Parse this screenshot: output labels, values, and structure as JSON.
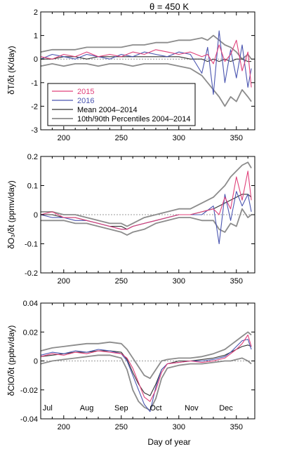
{
  "figure": {
    "title": "θ = 450 K",
    "xlabel": "Day of year",
    "month_labels": [
      "Jul",
      "Aug",
      "Sep",
      "Oct",
      "Nov",
      "Dec"
    ],
    "month_days": [
      186,
      220,
      250,
      280,
      311,
      341
    ]
  },
  "legend": {
    "entries": [
      {
        "label": "2015",
        "color": "#e0407a"
      },
      {
        "label": "2016",
        "color": "#4a55b0"
      },
      {
        "label": "Mean 2004–2014",
        "color": "#333333"
      },
      {
        "label": "10th/90th Percentiles 2004–2014",
        "color": "#8c8c8c"
      }
    ]
  },
  "colors": {
    "y2015": "#e0407a",
    "y2016": "#4a55b0",
    "mean": "#333333",
    "pct": "#8c8c8c",
    "zero": "#999999"
  },
  "chart_data": [
    {
      "type": "line",
      "ylabel": "δT/δt (K/day)",
      "xlim": [
        180,
        366
      ],
      "ylim": [
        -3,
        2
      ],
      "xticks": [
        200,
        250,
        300,
        350
      ],
      "yticks": [
        -3,
        -2,
        -1,
        0,
        1,
        2
      ],
      "x": [
        180,
        190,
        200,
        210,
        220,
        230,
        240,
        250,
        260,
        270,
        280,
        290,
        300,
        310,
        320,
        325,
        330,
        335,
        340,
        345,
        350,
        355,
        360,
        363
      ],
      "series": [
        {
          "name": "2015",
          "key": "y2015",
          "values": [
            0.1,
            0.0,
            0.2,
            0.1,
            0.3,
            0.1,
            0.2,
            0.1,
            0.3,
            0.2,
            0.4,
            0.3,
            0.2,
            0.3,
            0.1,
            0.2,
            -0.2,
            0.6,
            -0.1,
            0.2,
            0.8,
            -0.5,
            0.3,
            -1.2
          ]
        },
        {
          "name": "2016",
          "key": "y2016",
          "values": [
            0.0,
            0.2,
            0.1,
            0.0,
            0.2,
            0.1,
            0.0,
            0.2,
            0.1,
            0.3,
            0.2,
            0.1,
            0.3,
            0.2,
            -0.6,
            0.5,
            -1.5,
            1.2,
            -1.0,
            0.4,
            -0.8,
            0.6,
            -1.2,
            -0.4
          ]
        },
        {
          "name": "Mean 2004–2014",
          "key": "mean",
          "values": [
            0.0,
            0.0,
            0.1,
            0.1,
            0.0,
            0.1,
            0.1,
            0.1,
            0.1,
            0.1,
            0.1,
            0.1,
            0.1,
            0.0,
            0.0,
            -0.1,
            0.0,
            -0.1,
            0.0,
            -0.1,
            0.0,
            0.0,
            -0.1,
            -0.1
          ]
        },
        {
          "name": "10th Percentile 2004–2014",
          "key": "pct",
          "values": [
            -0.3,
            -0.2,
            -0.3,
            -0.2,
            -0.2,
            -0.3,
            -0.2,
            -0.2,
            -0.3,
            -0.2,
            -0.2,
            -0.2,
            -0.3,
            -0.4,
            -0.7,
            -1.0,
            -1.3,
            -1.6,
            -2.0,
            -1.6,
            -1.8,
            -1.3,
            -1.6,
            -1.8
          ]
        },
        {
          "name": "90th Percentile 2004–2014",
          "key": "pct",
          "values": [
            0.3,
            0.4,
            0.4,
            0.4,
            0.5,
            0.5,
            0.5,
            0.5,
            0.6,
            0.6,
            0.7,
            0.7,
            0.8,
            0.8,
            0.9,
            0.8,
            1.0,
            0.8,
            0.6,
            0.5,
            0.3,
            0.0,
            0.2,
            0.0
          ]
        }
      ]
    },
    {
      "type": "line",
      "ylabel": "δO₃/δt (ppmv/day)",
      "xlim": [
        180,
        366
      ],
      "ylim": [
        -0.2,
        0.2
      ],
      "xticks": [
        200,
        250,
        300,
        350
      ],
      "yticks": [
        -0.2,
        -0.1,
        0,
        0.1,
        0.2
      ],
      "x": [
        180,
        190,
        200,
        210,
        220,
        230,
        240,
        250,
        255,
        260,
        270,
        280,
        290,
        300,
        310,
        320,
        330,
        335,
        340,
        345,
        350,
        355,
        360,
        363
      ],
      "series": [
        {
          "name": "2015",
          "key": "y2015",
          "values": [
            0.0,
            0.01,
            -0.01,
            -0.01,
            -0.02,
            -0.03,
            -0.04,
            -0.05,
            -0.05,
            -0.04,
            -0.03,
            -0.02,
            -0.01,
            0.0,
            0.0,
            0.01,
            0.02,
            0.0,
            0.06,
            0.02,
            0.13,
            0.05,
            0.15,
            0.05
          ]
        },
        {
          "name": "2016",
          "key": "y2016",
          "values": [
            0.0,
            -0.01,
            -0.01,
            -0.02,
            -0.02,
            -0.03,
            -0.04,
            -0.05,
            -0.05,
            -0.04,
            -0.03,
            -0.02,
            -0.01,
            0.0,
            0.0,
            0.0,
            0.03,
            -0.1,
            0.07,
            -0.02,
            0.08,
            0.03,
            0.07,
            0.01
          ]
        },
        {
          "name": "Mean 2004–2014",
          "key": "mean",
          "values": [
            0.0,
            0.0,
            -0.01,
            -0.01,
            -0.02,
            -0.03,
            -0.04,
            -0.04,
            -0.05,
            -0.04,
            -0.03,
            -0.02,
            -0.01,
            0.0,
            0.0,
            0.01,
            0.02,
            0.03,
            0.04,
            0.05,
            0.06,
            0.07,
            0.07,
            0.06
          ]
        },
        {
          "name": "10th Percentile 2004–2014",
          "key": "pct",
          "values": [
            -0.02,
            -0.02,
            -0.02,
            -0.03,
            -0.03,
            -0.04,
            -0.05,
            -0.06,
            -0.07,
            -0.06,
            -0.05,
            -0.03,
            -0.02,
            -0.01,
            -0.01,
            -0.02,
            -0.02,
            -0.05,
            -0.06,
            -0.03,
            -0.04,
            0.02,
            -0.01,
            0.0
          ]
        },
        {
          "name": "90th Percentile 2004–2014",
          "key": "pct",
          "values": [
            0.01,
            0.01,
            0.0,
            0.0,
            -0.01,
            -0.02,
            -0.03,
            -0.03,
            -0.04,
            -0.03,
            -0.01,
            0.0,
            0.01,
            0.02,
            0.02,
            0.04,
            0.06,
            0.08,
            0.1,
            0.13,
            0.15,
            0.17,
            0.18,
            0.16
          ]
        }
      ]
    },
    {
      "type": "line",
      "ylabel": "δClO/δt (ppbv/day)",
      "xlim": [
        180,
        366
      ],
      "ylim": [
        -0.04,
        0.04
      ],
      "xticks": [
        200,
        250,
        300,
        350
      ],
      "yticks": [
        -0.04,
        -0.02,
        0,
        0.02,
        0.04
      ],
      "x": [
        180,
        190,
        200,
        210,
        220,
        230,
        240,
        250,
        255,
        260,
        265,
        270,
        275,
        280,
        285,
        290,
        300,
        310,
        320,
        330,
        340,
        345,
        350,
        355,
        360,
        363
      ],
      "series": [
        {
          "name": "2015",
          "key": "y2015",
          "values": [
            0.003,
            0.005,
            0.004,
            0.006,
            0.005,
            0.007,
            0.006,
            0.005,
            0.002,
            -0.005,
            -0.015,
            -0.025,
            -0.028,
            -0.02,
            -0.008,
            -0.002,
            -0.001,
            0.0,
            -0.001,
            0.0,
            0.002,
            0.005,
            0.008,
            0.012,
            0.018,
            0.01
          ]
        },
        {
          "name": "2016",
          "key": "y2016",
          "values": [
            0.004,
            0.006,
            0.005,
            0.007,
            0.006,
            0.008,
            0.007,
            0.005,
            0.0,
            -0.01,
            -0.02,
            -0.03,
            -0.035,
            -0.018,
            -0.006,
            -0.002,
            -0.001,
            0.0,
            0.0,
            0.001,
            0.003,
            0.006,
            0.01,
            0.014,
            0.015,
            0.008
          ]
        },
        {
          "name": "Mean 2004–2014",
          "key": "mean",
          "values": [
            0.003,
            0.004,
            0.005,
            0.006,
            0.006,
            0.007,
            0.007,
            0.006,
            0.001,
            -0.008,
            -0.016,
            -0.022,
            -0.024,
            -0.016,
            -0.006,
            -0.002,
            0.0,
            0.0,
            0.001,
            0.002,
            0.004,
            0.006,
            0.008,
            0.01,
            0.011,
            0.01
          ]
        },
        {
          "name": "10th Percentile 2004–2014",
          "key": "pct",
          "values": [
            -0.002,
            0.0,
            0.001,
            0.002,
            0.003,
            0.004,
            0.004,
            0.002,
            -0.006,
            -0.02,
            -0.028,
            -0.032,
            -0.034,
            -0.026,
            -0.012,
            -0.005,
            -0.003,
            -0.002,
            -0.002,
            -0.001,
            0.0,
            0.0,
            0.001,
            0.002,
            0.0,
            -0.002
          ]
        },
        {
          "name": "90th Percentile 2004–2014",
          "key": "pct",
          "values": [
            0.007,
            0.009,
            0.01,
            0.011,
            0.012,
            0.012,
            0.013,
            0.012,
            0.008,
            0.002,
            -0.004,
            -0.01,
            -0.012,
            -0.006,
            0.0,
            0.001,
            0.002,
            0.002,
            0.003,
            0.005,
            0.008,
            0.011,
            0.014,
            0.017,
            0.02,
            0.018
          ]
        }
      ]
    }
  ]
}
